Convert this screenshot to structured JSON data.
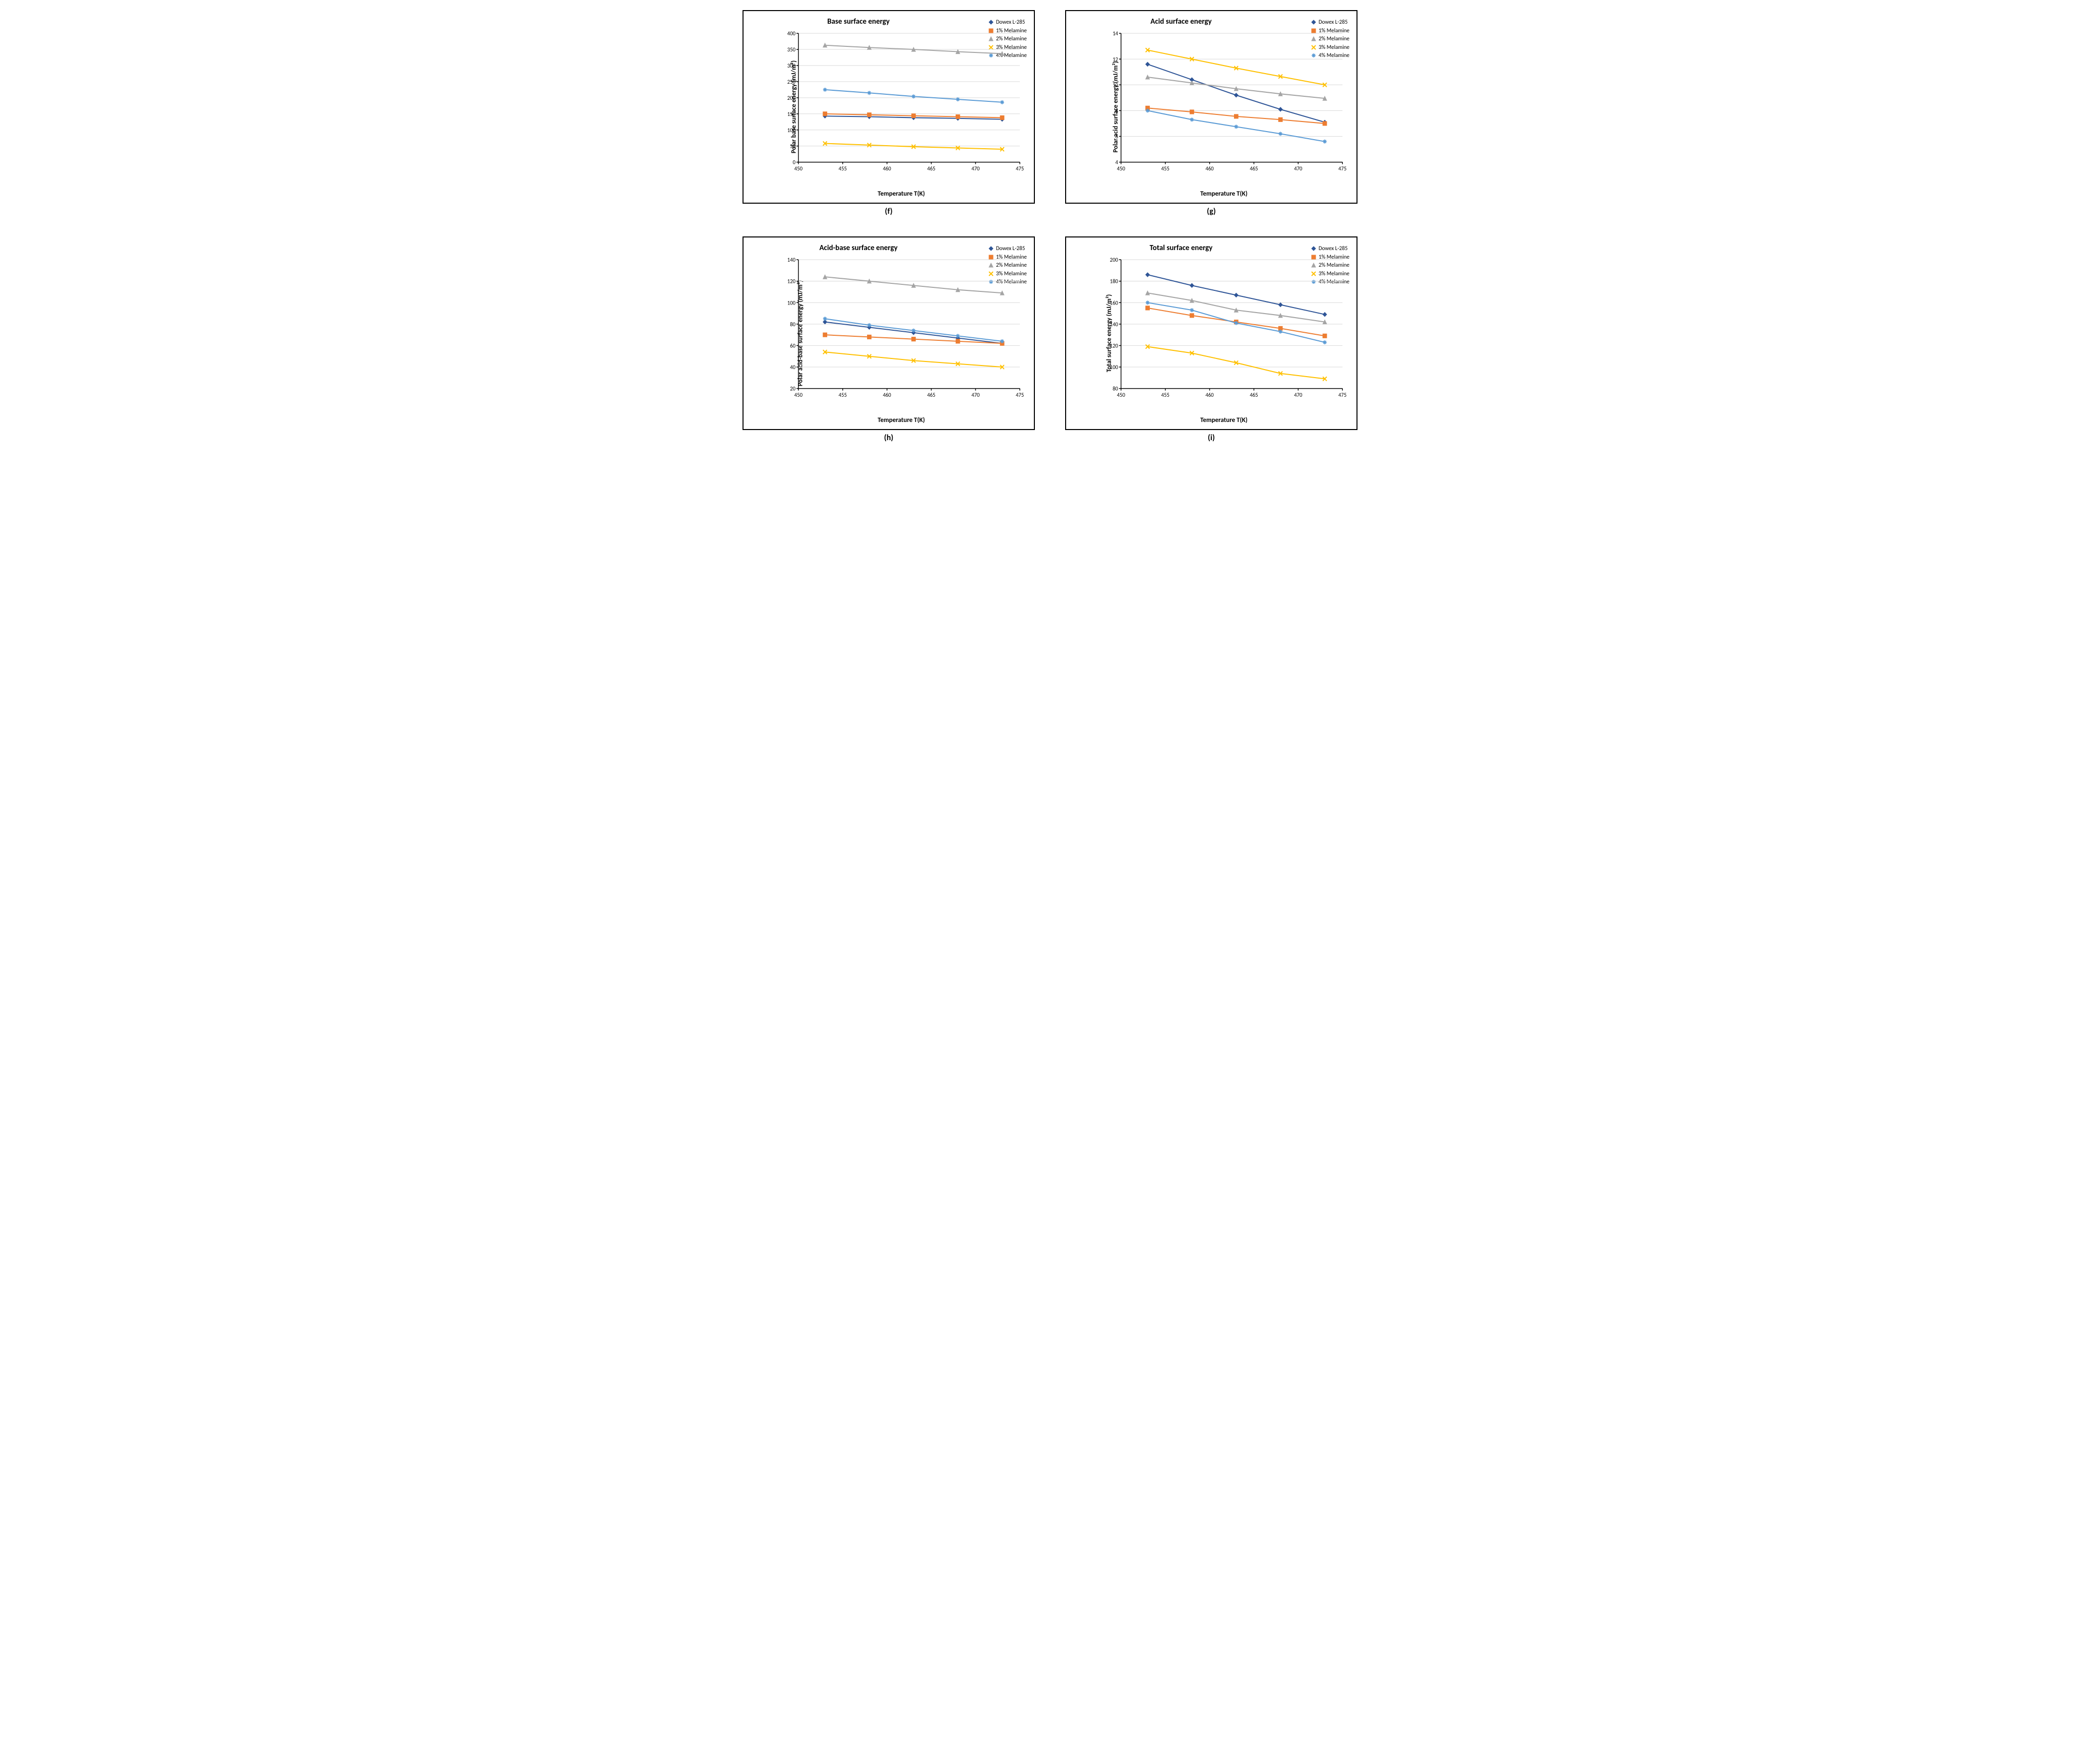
{
  "x_values": [
    453,
    458,
    463,
    468,
    473
  ],
  "x_axis": {
    "label": "Temperature T(K)",
    "min": 450,
    "max": 475,
    "tick_step": 5
  },
  "series_meta": [
    {
      "key": "dowex",
      "name": "Dowex L-285",
      "color": "#2f5597",
      "marker": "diamond"
    },
    {
      "key": "m1",
      "name": "1% Melamine",
      "color": "#ed7d31",
      "marker": "square"
    },
    {
      "key": "m2",
      "name": "2% Melamine",
      "color": "#a5a5a5",
      "marker": "triangle"
    },
    {
      "key": "m3",
      "name": "3% Melamine",
      "color": "#ffc000",
      "marker": "x"
    },
    {
      "key": "m4",
      "name": "4% Melamine",
      "color": "#5b9bd5",
      "marker": "asterisk"
    }
  ],
  "charts": [
    {
      "id": "f",
      "title": "Base surface energy",
      "ylabel": "Polar base surface energy (mJ/m²)",
      "ymin": 0,
      "ymax": 400,
      "ytick_step": 50,
      "subcaption": "(f)",
      "data": {
        "dowex": [
          143,
          141,
          138,
          136,
          133
        ],
        "m1": [
          150,
          147,
          144,
          141,
          138
        ],
        "m2": [
          363,
          356,
          350,
          343,
          337
        ],
        "m3": [
          58,
          53,
          48,
          44,
          40
        ],
        "m4": [
          225,
          215,
          204,
          195,
          186
        ]
      }
    },
    {
      "id": "g",
      "title": "Acid surface energy",
      "ylabel": "Polar acid surface energy (mJ/m²)",
      "ymin": 4,
      "ymax": 14,
      "ytick_step": 2,
      "subcaption": "(g)",
      "data": {
        "dowex": [
          11.6,
          10.4,
          9.2,
          8.1,
          7.1
        ],
        "m1": [
          8.2,
          7.9,
          7.55,
          7.3,
          7.0
        ],
        "m2": [
          10.6,
          10.15,
          9.7,
          9.3,
          8.95
        ],
        "m3": [
          12.7,
          12.0,
          11.3,
          10.65,
          10.0
        ],
        "m4": [
          8.0,
          7.3,
          6.75,
          6.2,
          5.6
        ]
      }
    },
    {
      "id": "h",
      "title": "Acid-base surface energy",
      "ylabel": "Polar acid-base surface energy (mJ/m²)",
      "ymin": 20,
      "ymax": 140,
      "ytick_step": 20,
      "subcaption": "(h)",
      "data": {
        "dowex": [
          82,
          77,
          72,
          67,
          62
        ],
        "m1": [
          70,
          68,
          66,
          64,
          62
        ],
        "m2": [
          124,
          120,
          116,
          112,
          109
        ],
        "m3": [
          54,
          50,
          46,
          43,
          40
        ],
        "m4": [
          85,
          79,
          74,
          69,
          64
        ]
      }
    },
    {
      "id": "i",
      "title": "Total surface energy",
      "ylabel": "Total surface energy (mJ/m²)",
      "ymin": 80,
      "ymax": 200,
      "ytick_step": 20,
      "subcaption": "(i)",
      "data": {
        "dowex": [
          186,
          176,
          167,
          158,
          149
        ],
        "m1": [
          155,
          148,
          142,
          136,
          129
        ],
        "m2": [
          169,
          162,
          153,
          148,
          142
        ],
        "m3": [
          119,
          113,
          104,
          94,
          89
        ],
        "m4": [
          160,
          153,
          141,
          133,
          123
        ]
      }
    }
  ],
  "style": {
    "background_color": "#ffffff",
    "border_color": "#000000",
    "grid_color": "#d9d9d9",
    "title_fontsize": 15,
    "label_fontsize": 13,
    "tick_fontsize": 11,
    "legend_fontsize": 11,
    "line_width": 2,
    "marker_size": 8
  }
}
